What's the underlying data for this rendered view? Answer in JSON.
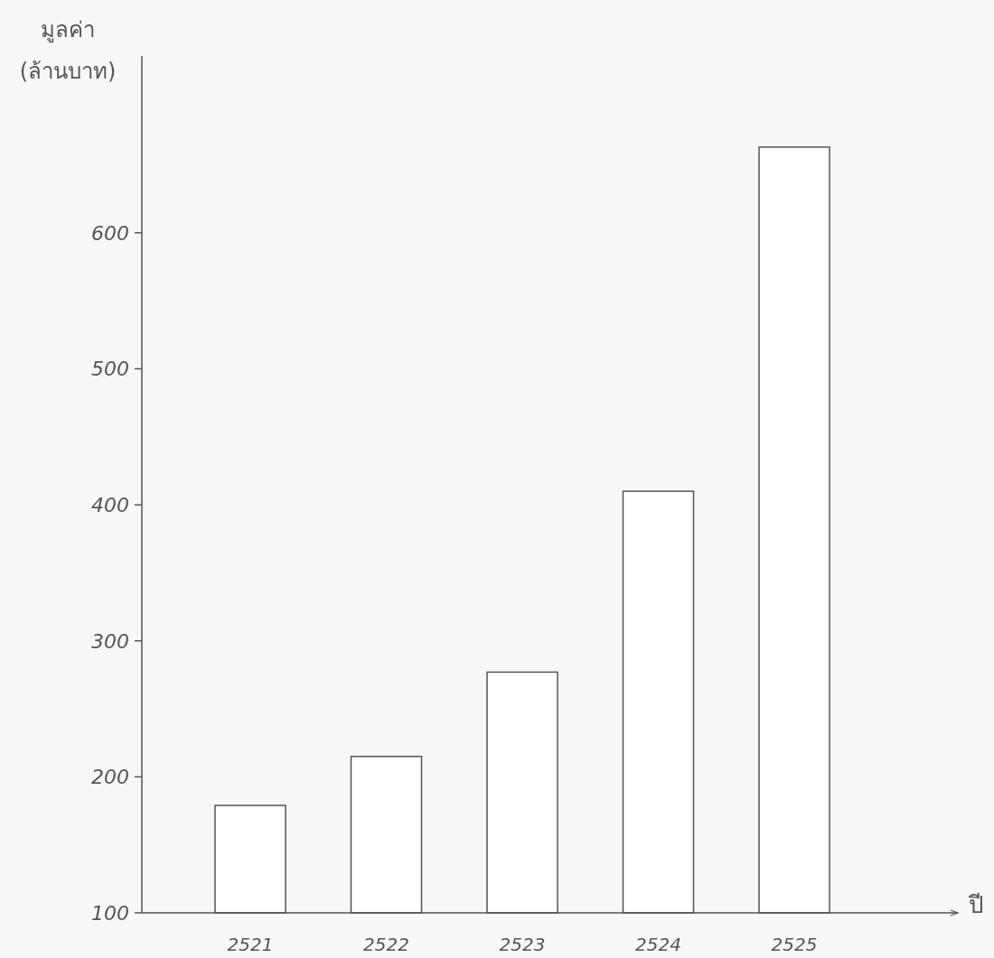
{
  "chart_data": {
    "type": "bar",
    "xlabel": "ปี",
    "ylabel": "มูลค่า (ล้านบาท)",
    "categories": [
      "2521",
      "2522",
      "2523",
      "2524",
      "2525"
    ],
    "values": [
      179,
      215,
      277,
      410,
      663
    ],
    "color": "#ffffff",
    "ylim": [
      100,
      730
    ],
    "yticks": [
      100,
      200,
      300,
      400,
      500,
      600
    ]
  }
}
